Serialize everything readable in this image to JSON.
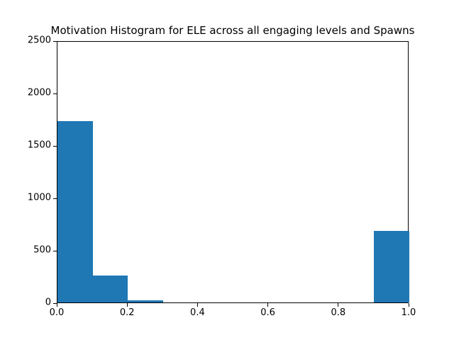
{
  "figure": {
    "background": "#ffffff"
  },
  "chart_data": {
    "type": "bar",
    "subtype": "histogram",
    "title": "Motivation Histogram for ELE across all engaging levels and Spawns",
    "xlabel": "",
    "ylabel": "",
    "bin_edges": [
      0.0,
      0.1,
      0.2,
      0.3,
      0.4,
      0.5,
      0.6,
      0.7,
      0.8,
      0.9,
      1.0
    ],
    "counts": [
      1730,
      260,
      20,
      0,
      0,
      0,
      0,
      0,
      0,
      685
    ],
    "xlim": [
      0.0,
      1.0
    ],
    "ylim": [
      0,
      2500
    ],
    "x_tick_values": [
      0.0,
      0.2,
      0.4,
      0.6,
      0.8,
      1.0
    ],
    "x_tick_labels": [
      "0.0",
      "0.2",
      "0.4",
      "0.6",
      "0.8",
      "1.0"
    ],
    "y_tick_values": [
      0,
      500,
      1000,
      1500,
      2000,
      2500
    ],
    "y_tick_labels": [
      "0",
      "500",
      "1000",
      "1500",
      "2000",
      "2500"
    ],
    "bar_color": "#1f77b4",
    "spine_color": "#000000",
    "text_color": "#000000",
    "grid": false,
    "legend": null
  }
}
